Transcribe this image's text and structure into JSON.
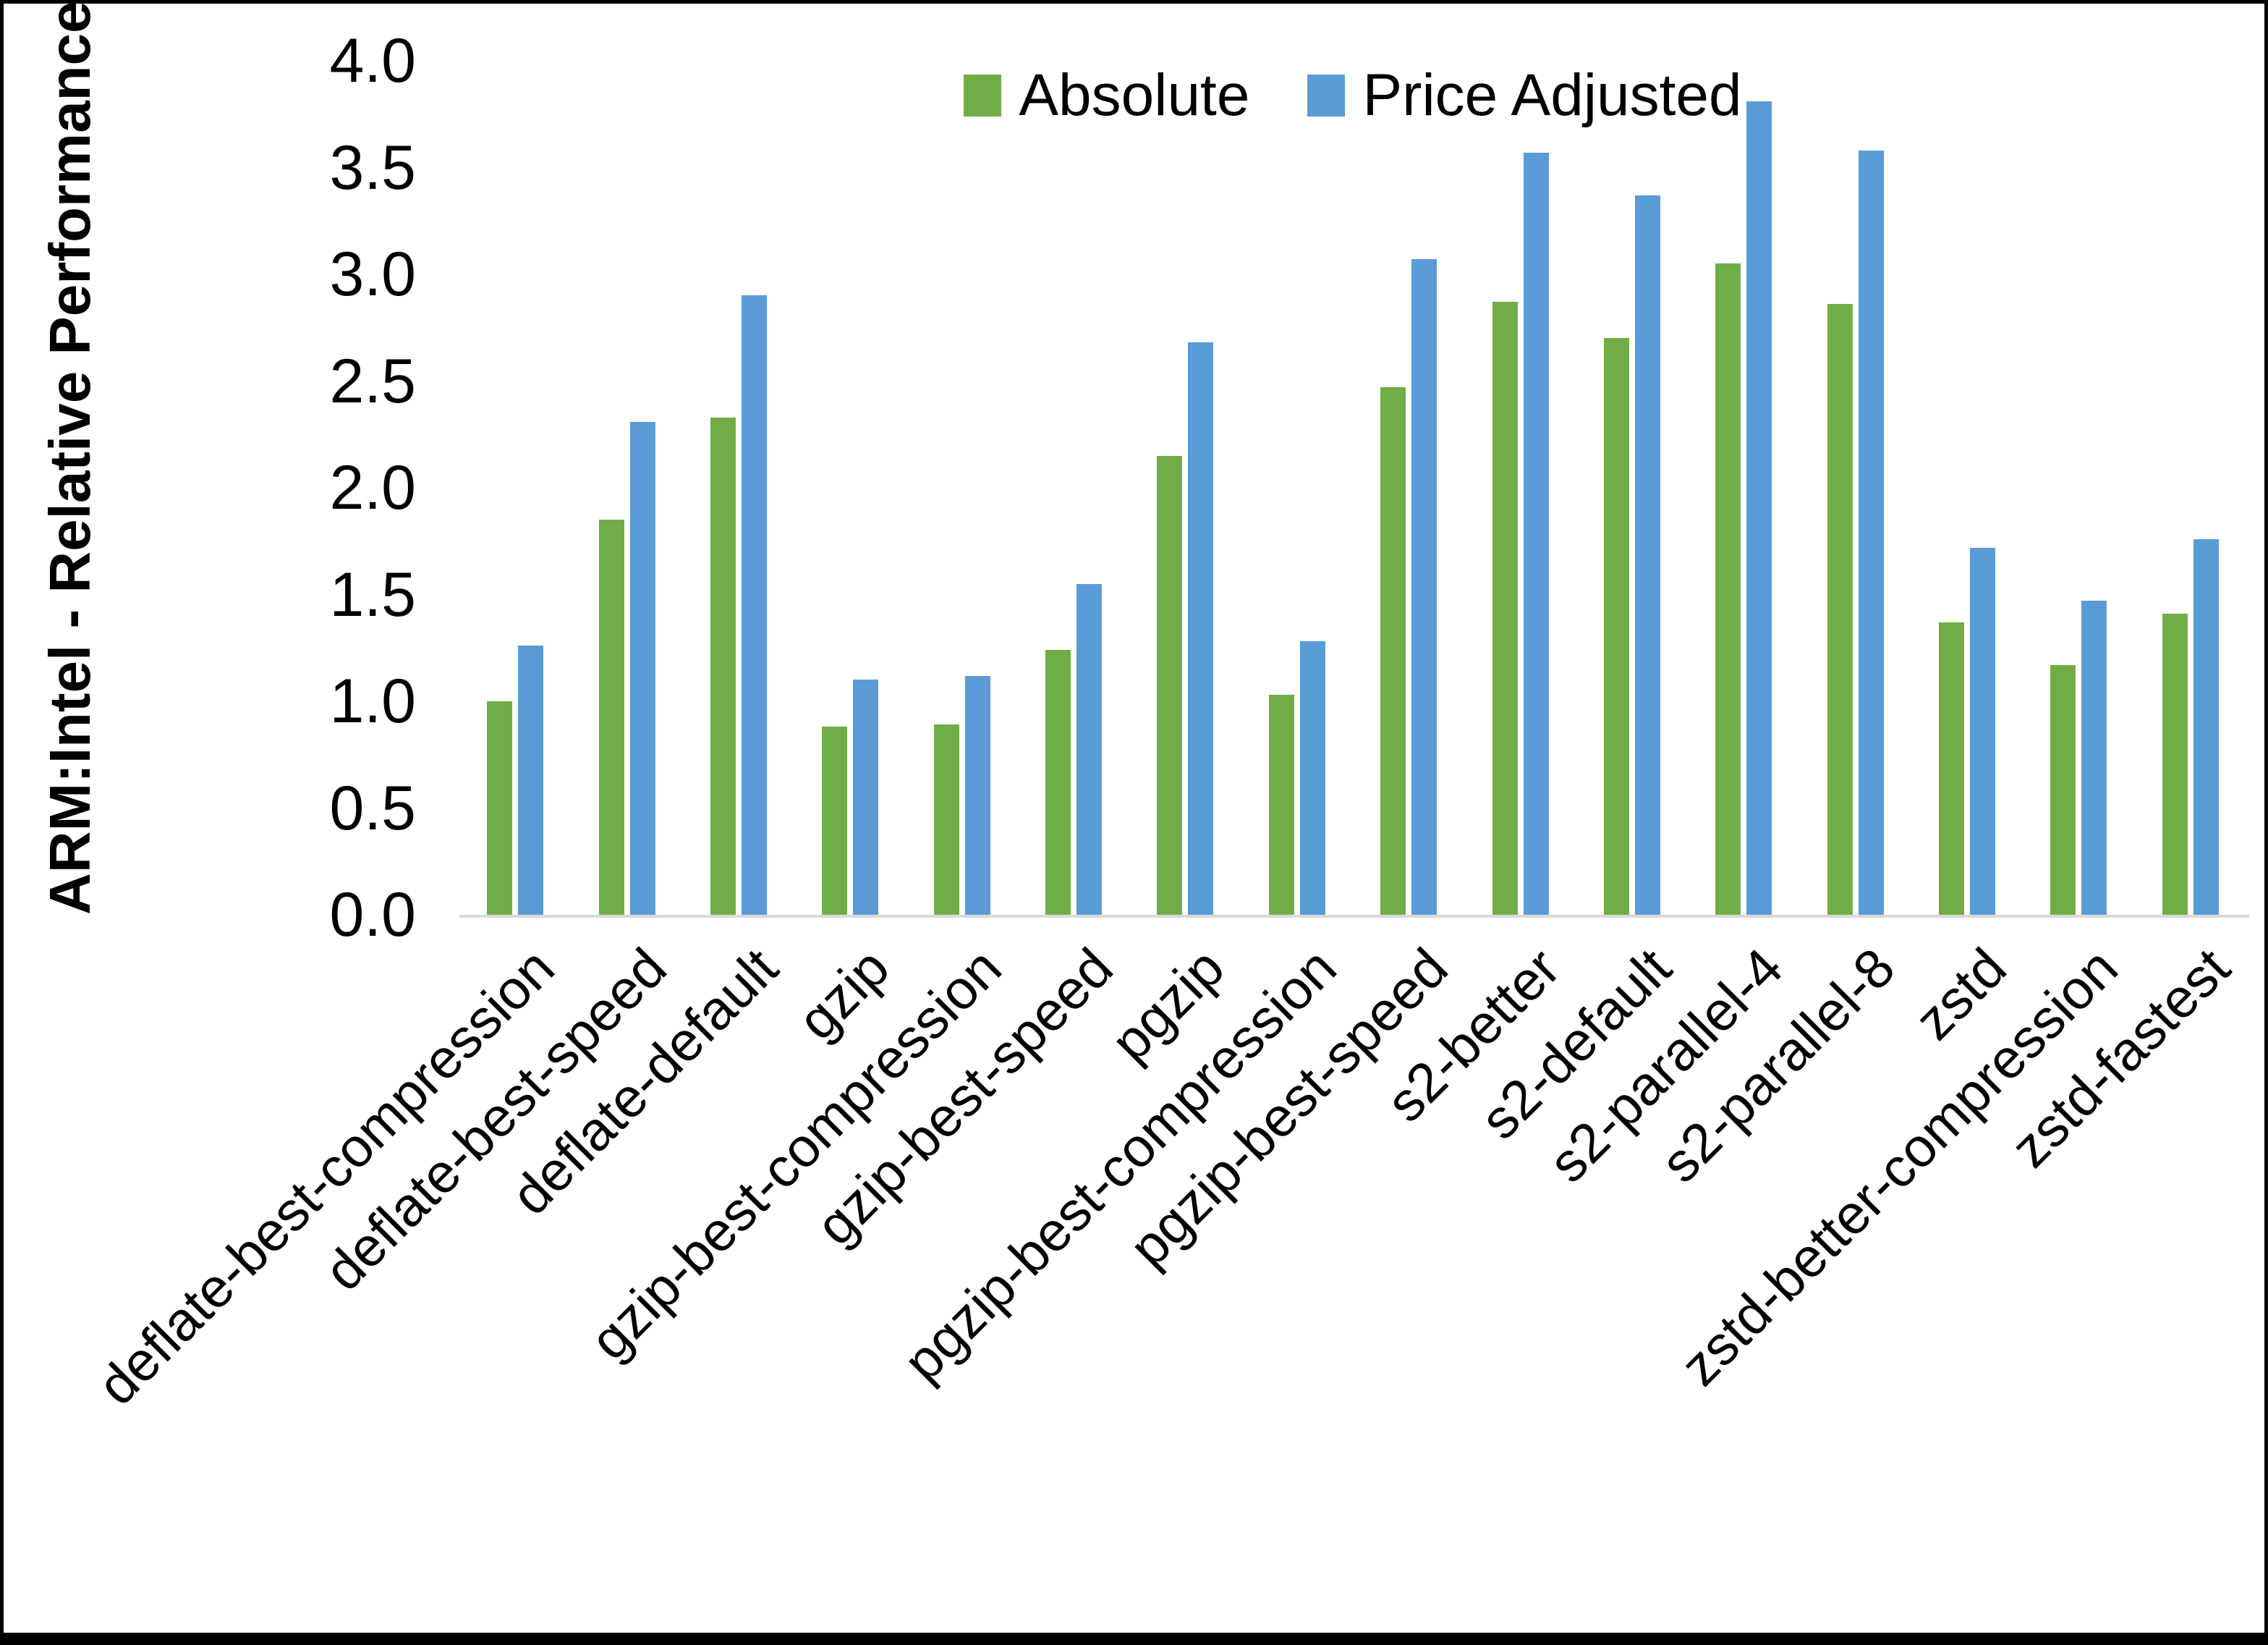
{
  "chart_data": {
    "type": "bar",
    "title": "",
    "xlabel": "",
    "ylabel": "ARM:Intel - Relative Performance",
    "ylim": [
      0.0,
      4.0
    ],
    "ytick_step": 0.5,
    "grid": false,
    "legend_position": "top-center",
    "categories": [
      "deflate-best-compression",
      "deflate-best-speed",
      "deflate-default",
      "gzip",
      "gzip-best-compression",
      "gzip-best-speed",
      "pgzip",
      "pgzip-best-compression",
      "pgzip-best-speed",
      "s2-better",
      "s2-default",
      "s2-parallel-4",
      "s2-parallel-8",
      "zstd",
      "zstd-better-compression",
      "zstd-fastest"
    ],
    "series": [
      {
        "name": "Absolute",
        "color": "#70AD47",
        "values": [
          1.0,
          1.85,
          2.33,
          0.88,
          0.89,
          1.24,
          2.15,
          1.03,
          2.47,
          2.87,
          2.7,
          3.05,
          2.86,
          1.37,
          1.17,
          1.41
        ]
      },
      {
        "name": "Price Adjusted",
        "color": "#5B9BD5",
        "values": [
          1.26,
          2.31,
          2.9,
          1.1,
          1.12,
          1.55,
          2.68,
          1.28,
          3.07,
          3.57,
          3.37,
          3.81,
          3.58,
          1.72,
          1.47,
          1.76
        ]
      }
    ]
  },
  "colors": {
    "background": "#FFFFFF",
    "border": "#000000",
    "axis_line": "#D9D9D9",
    "text": "#000000"
  }
}
